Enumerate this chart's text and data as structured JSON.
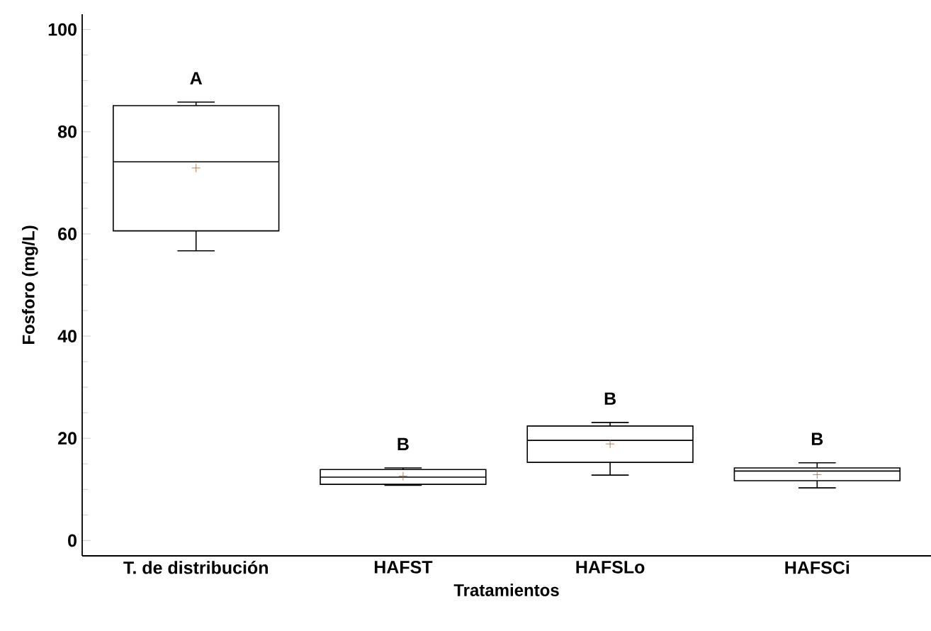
{
  "chart_data": {
    "type": "box",
    "xlabel": "Tratamientos",
    "ylabel": "Fosforo (mg/L)",
    "categories": [
      "T. de distribución",
      "HAFST",
      "HAFSLo",
      "HAFSCi"
    ],
    "color": "#000000",
    "boxes": [
      {
        "low": 56.7,
        "q1": 60.6,
        "median": 74.1,
        "q3": 85.1,
        "high": 85.8,
        "mean": 72.9
      },
      {
        "low": 10.8,
        "q1": 11.0,
        "median": 12.4,
        "q3": 13.9,
        "high": 14.2,
        "mean": 12.6
      },
      {
        "low": 12.8,
        "q1": 15.3,
        "median": 19.6,
        "q3": 22.4,
        "high": 23.1,
        "mean": 18.9
      },
      {
        "low": 10.3,
        "q1": 11.7,
        "median": 13.6,
        "q3": 14.2,
        "high": 15.2,
        "mean": 12.9
      }
    ],
    "ylim": [
      -3,
      103
    ],
    "yticks": [
      0,
      20,
      40,
      60,
      80,
      100
    ],
    "grid": false,
    "annotations": [
      "A",
      "B",
      "B",
      "B"
    ]
  }
}
